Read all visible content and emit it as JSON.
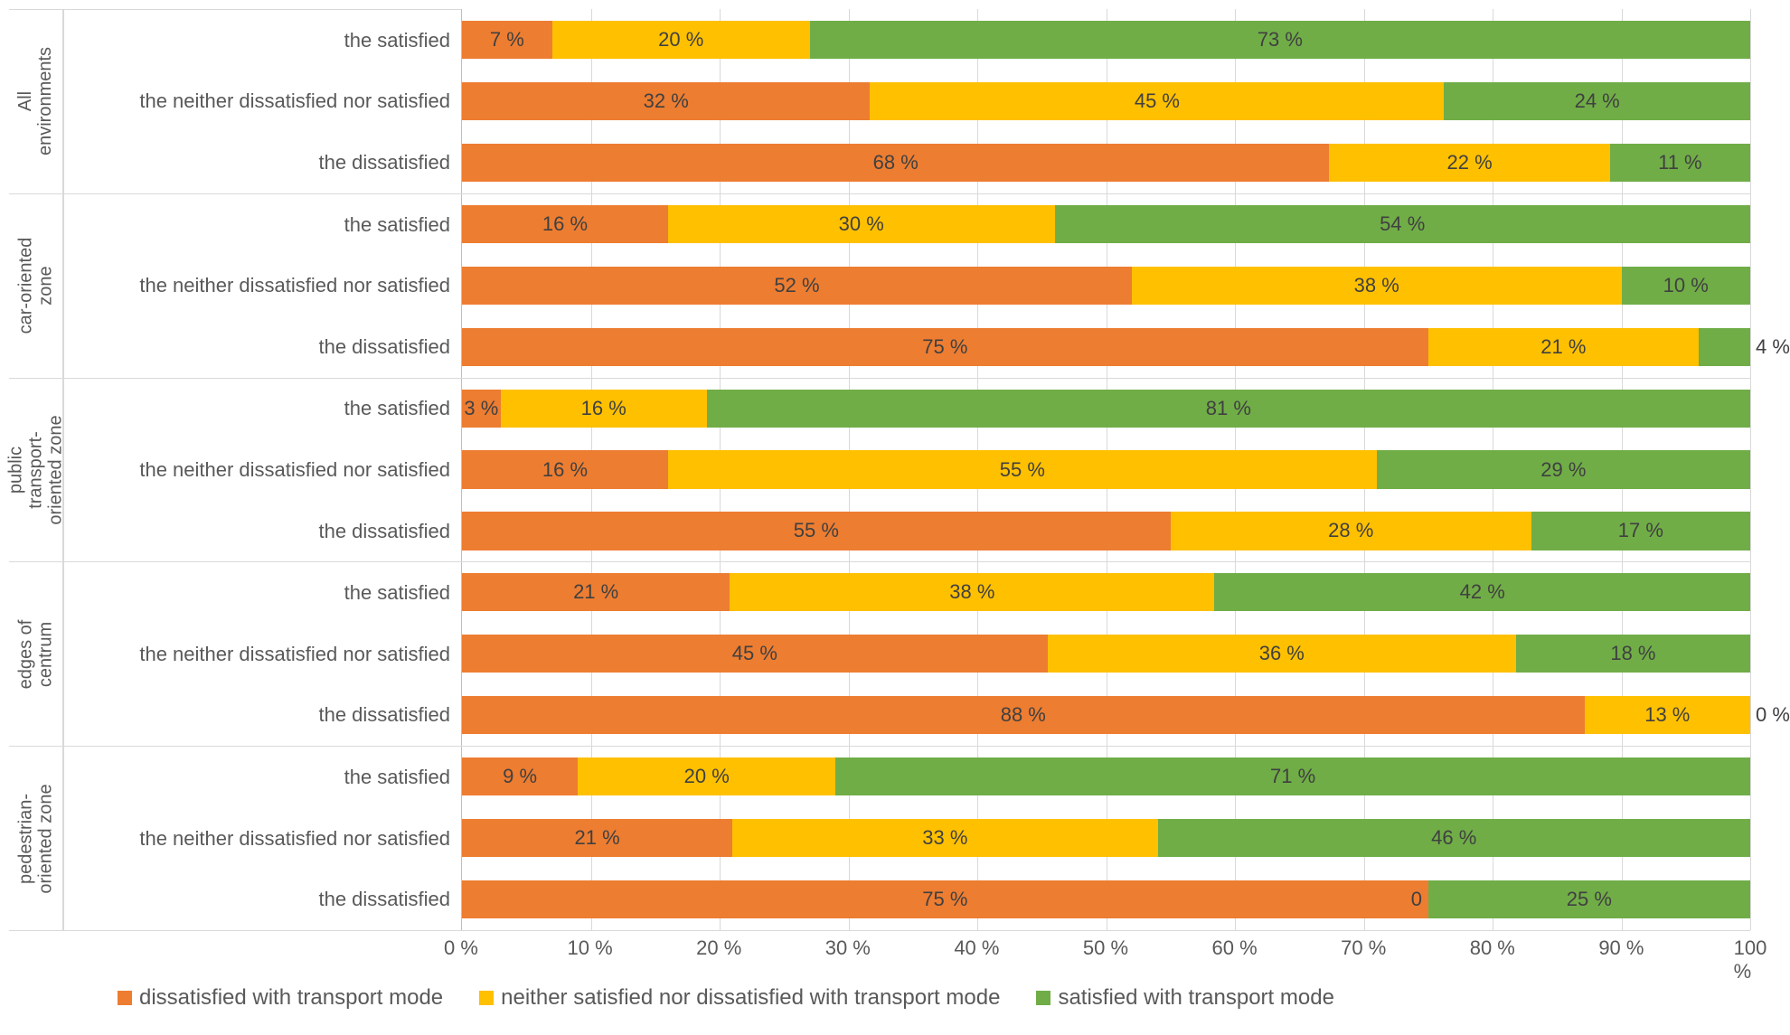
{
  "chart": {
    "type": "stacked-bar-horizontal",
    "xlim": [
      0,
      100
    ],
    "xtick_step": 10,
    "xtick_suffix": " %",
    "background_color": "#ffffff",
    "grid_color": "#d9d9d9",
    "axis_color": "#bfbfbf",
    "text_color": "#595959",
    "label_fontsize": 22,
    "group_label_fontsize": 20,
    "legend_fontsize": 24,
    "bar_height_ratio": 0.62,
    "series": [
      {
        "key": "dissat",
        "label": "dissatisfied with transport mode",
        "color": "#ed7d31"
      },
      {
        "key": "neither",
        "label": "neither satisfied nor dissatisfied with transport mode",
        "color": "#ffc000"
      },
      {
        "key": "sat",
        "label": "satisfied with transport mode",
        "color": "#70ad47"
      }
    ],
    "groups": [
      {
        "label": "All\nenvironments",
        "rows": [
          {
            "label": "the satisfied",
            "values": [
              7,
              20,
              73
            ]
          },
          {
            "label": "the neither dissatisfied nor satisfied",
            "values": [
              32,
              45,
              24
            ]
          },
          {
            "label": "the dissatisfied",
            "values": [
              68,
              22,
              11
            ]
          }
        ]
      },
      {
        "label": "car-oriented\nzone",
        "rows": [
          {
            "label": "the satisfied",
            "values": [
              16,
              30,
              54
            ]
          },
          {
            "label": "the neither dissatisfied nor satisfied",
            "values": [
              52,
              38,
              10
            ]
          },
          {
            "label": "the dissatisfied",
            "values": [
              75,
              21,
              4
            ]
          }
        ]
      },
      {
        "label": "public\ntransport-\noriented zone",
        "rows": [
          {
            "label": "the satisfied",
            "values": [
              3,
              16,
              81
            ]
          },
          {
            "label": "the neither dissatisfied nor satisfied",
            "values": [
              16,
              55,
              29
            ]
          },
          {
            "label": "the dissatisfied",
            "values": [
              55,
              28,
              17
            ]
          }
        ]
      },
      {
        "label": "edges of\ncentrum",
        "rows": [
          {
            "label": "the satisfied",
            "values": [
              21,
              38,
              42
            ]
          },
          {
            "label": "the neither dissatisfied nor satisfied",
            "values": [
              45,
              36,
              18
            ]
          },
          {
            "label": "the dissatisfied",
            "values": [
              88,
              13,
              0
            ]
          }
        ]
      },
      {
        "label": "pedestrian-\noriented zone",
        "rows": [
          {
            "label": "the satisfied",
            "values": [
              9,
              20,
              71
            ]
          },
          {
            "label": "the neither dissatisfied nor satisfied",
            "values": [
              21,
              33,
              46
            ]
          },
          {
            "label": "the dissatisfied",
            "values": [
              75,
              0,
              25
            ]
          }
        ]
      }
    ]
  }
}
